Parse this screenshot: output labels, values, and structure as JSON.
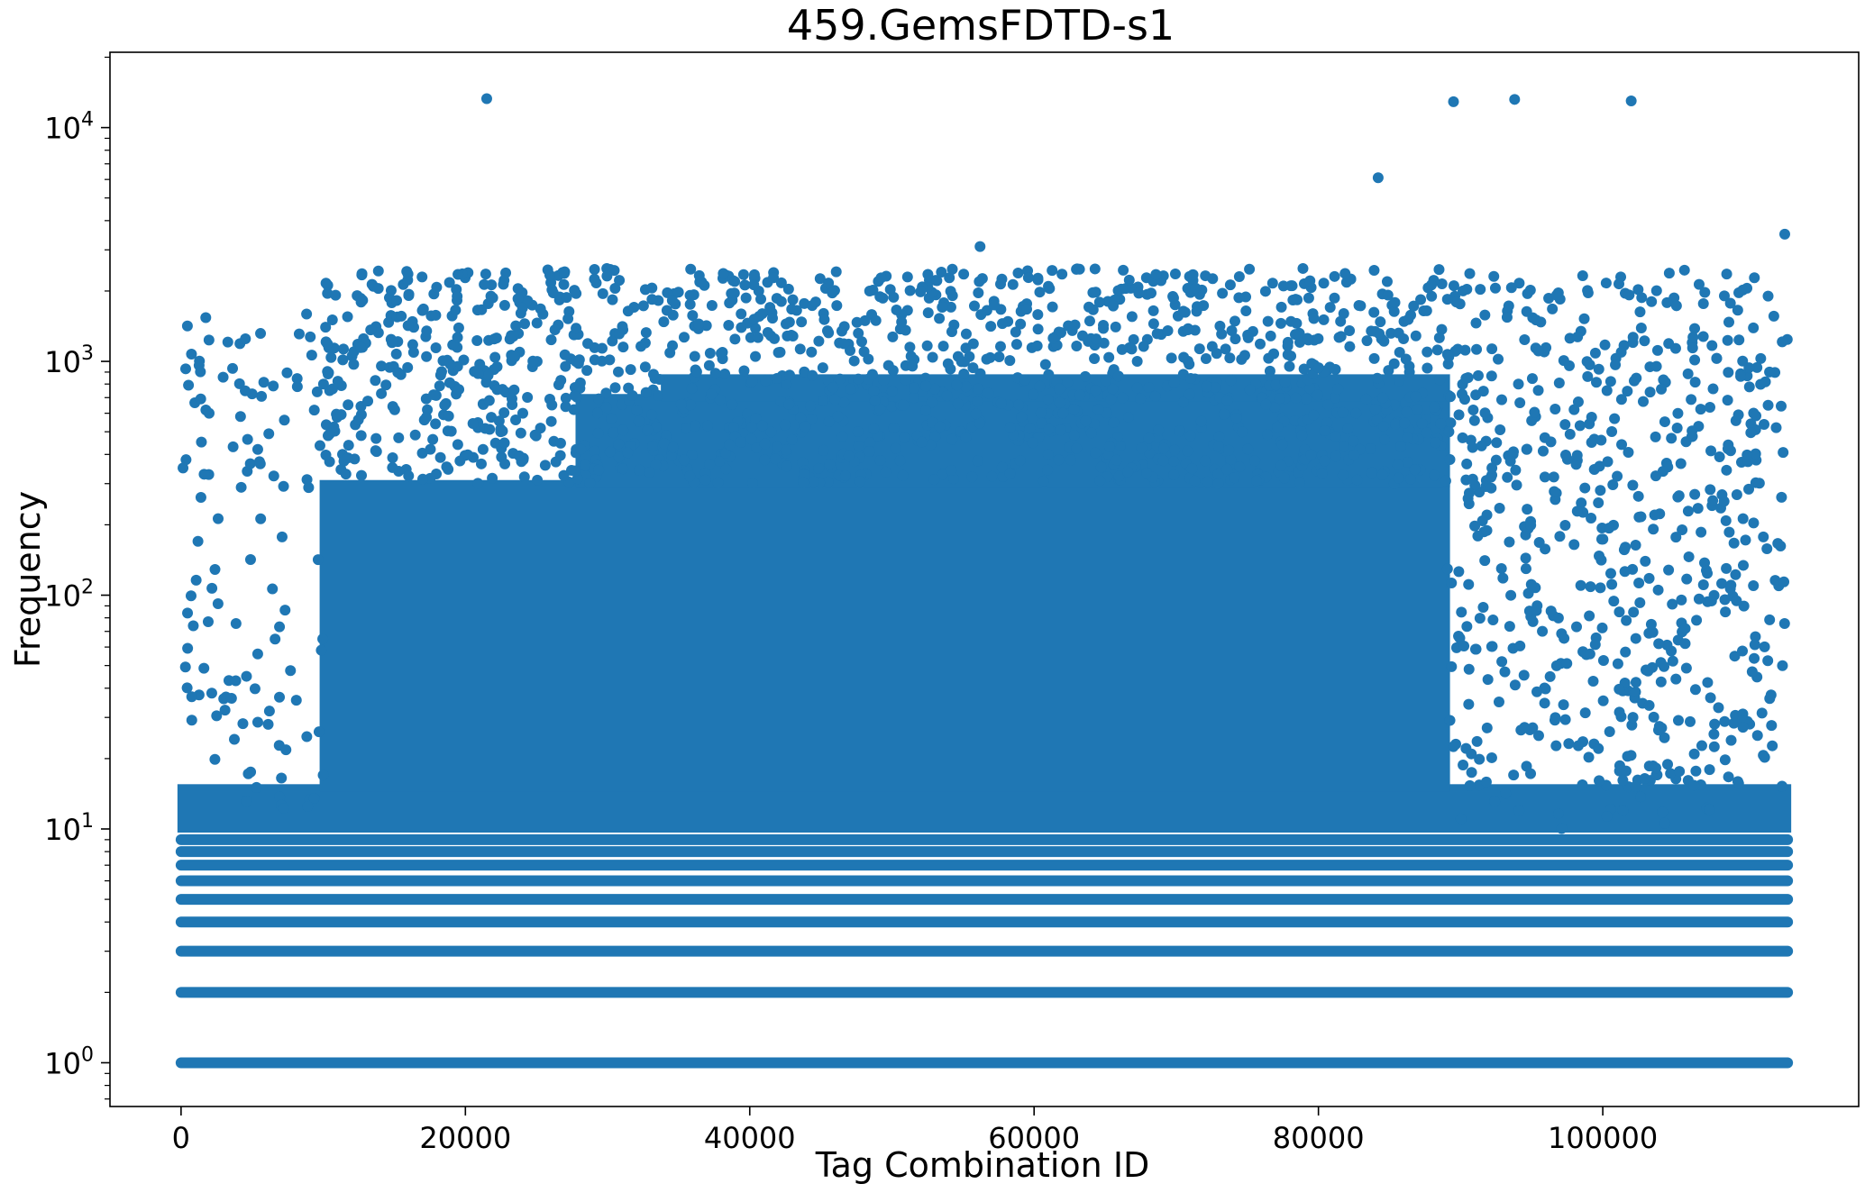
{
  "chart_data": {
    "type": "scatter",
    "title": "459.GemsFDTD-s1",
    "xlabel": "Tag Combination ID",
    "ylabel": "Frequency",
    "y_scale": "log",
    "grid": false,
    "xlim": [
      -5000,
      118000
    ],
    "ylim": [
      0.65,
      21000
    ],
    "x_ticks": [
      0,
      20000,
      40000,
      60000,
      80000,
      100000
    ],
    "x_tick_labels": [
      "0",
      "20000",
      "40000",
      "60000",
      "80000",
      "100000"
    ],
    "y_ticks": [
      1,
      10,
      100,
      1000,
      10000
    ],
    "y_tick_labels": [
      {
        "base": "10",
        "exp": "0"
      },
      {
        "base": "10",
        "exp": "1"
      },
      {
        "base": "10",
        "exp": "2"
      },
      {
        "base": "10",
        "exp": "3"
      },
      {
        "base": "10",
        "exp": "4"
      }
    ],
    "marker_color": "#1f77b4",
    "series": [
      {
        "x_range": [
          0,
          113000
        ],
        "dense_bands": [
          {
            "y": 1,
            "x_range": [
              0,
              113000
            ]
          },
          {
            "y": 2,
            "x_range": [
              0,
              113000
            ]
          },
          {
            "y": 3,
            "x_range": [
              0,
              113000
            ]
          },
          {
            "y": 4,
            "x_range": [
              0,
              113000
            ]
          },
          {
            "y": 5,
            "x_range": [
              0,
              113000
            ]
          },
          {
            "y": 6,
            "x_range": [
              0,
              113000
            ]
          },
          {
            "y": 7,
            "x_range": [
              0,
              113000
            ]
          },
          {
            "y": 8,
            "x_range": [
              0,
              113000
            ]
          },
          {
            "y": 9,
            "x_range": [
              0,
              113000
            ]
          }
        ],
        "dense_regions": [
          {
            "x_range": [
              0,
              113000
            ],
            "y_range": [
              10,
              15
            ]
          },
          {
            "x_range": [
              10000,
              89000
            ],
            "y_range": [
              15,
              300
            ]
          },
          {
            "x_range": [
              28000,
              89000
            ],
            "y_range": [
              300,
              700
            ]
          },
          {
            "x_range": [
              34000,
              89000
            ],
            "y_range": [
              700,
              850
            ]
          }
        ],
        "outliers": [
          {
            "x": 21500,
            "y": 13300
          },
          {
            "x": 84200,
            "y": 6100
          },
          {
            "x": 89500,
            "y": 12900
          },
          {
            "x": 93800,
            "y": 13200
          },
          {
            "x": 102000,
            "y": 13000
          },
          {
            "x": 112800,
            "y": 3500
          },
          {
            "x": 56200,
            "y": 3100
          }
        ]
      }
    ]
  }
}
